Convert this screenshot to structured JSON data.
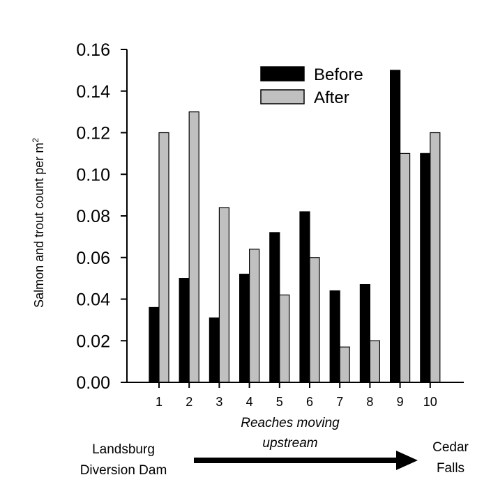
{
  "chart_data": {
    "type": "bar",
    "categories": [
      "1",
      "2",
      "3",
      "4",
      "5",
      "6",
      "7",
      "8",
      "9",
      "10"
    ],
    "series": [
      {
        "name": "Before",
        "color": "#000000",
        "values": [
          0.036,
          0.05,
          0.031,
          0.052,
          0.072,
          0.082,
          0.044,
          0.047,
          0.15,
          0.11
        ]
      },
      {
        "name": "After",
        "color": "#c0c0c0",
        "values": [
          0.12,
          0.13,
          0.084,
          0.064,
          0.042,
          0.06,
          0.017,
          0.02,
          0.11,
          0.12
        ]
      }
    ],
    "ylabel_text": "Salmon and trout count per m",
    "ylabel_sup": "2",
    "xlabel_line1": "Reaches moving",
    "xlabel_line2": "upstream",
    "ylim": [
      0,
      0.16
    ],
    "yticks": [
      "0.00",
      "0.02",
      "0.04",
      "0.06",
      "0.08",
      "0.10",
      "0.12",
      "0.14",
      "0.16"
    ],
    "legend_position": "top-right",
    "grid": false
  },
  "annotations": {
    "left_line1": "Landsburg",
    "left_line2": "Diversion Dam",
    "right_line1": "Cedar",
    "right_line2": "Falls",
    "arrow": "arrow-right"
  }
}
